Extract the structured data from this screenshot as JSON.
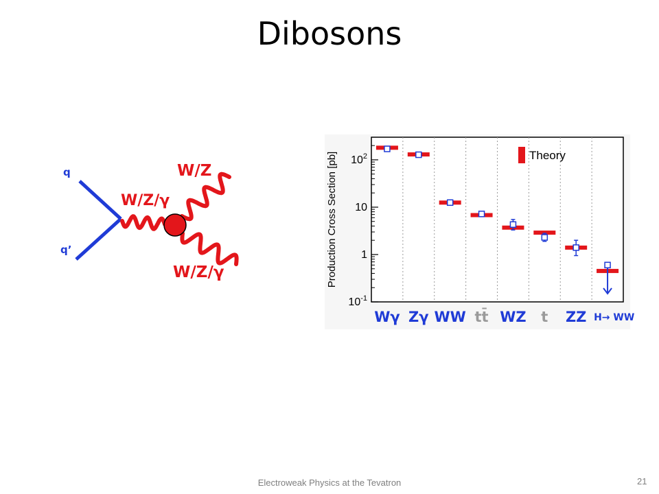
{
  "slide": {
    "title": "Dibosons",
    "footer": "Electroweak Physics at the Tevatron",
    "page_number": "21"
  },
  "feynman": {
    "quark_top": "q",
    "quark_bottom": "q’",
    "boson_internal": "W/Z/γ",
    "boson_out_top": "W/Z",
    "boson_out_bottom": "W/Z/γ",
    "line_color": "#1f3bd6",
    "boson_color": "#e3161b"
  },
  "chart_data": {
    "type": "scatter",
    "ylabel": "Production Cross Section [pb]",
    "yscale": "log",
    "ylim": [
      0.1,
      300
    ],
    "y_tick_labels": [
      "10^-1",
      "1",
      "10",
      "10^2"
    ],
    "legend": {
      "label": "Theory",
      "position": "top-right",
      "color": "#e3161b"
    },
    "categories": [
      "Wγ",
      "Zγ",
      "WW",
      "tt̄",
      "WZ",
      "t",
      "ZZ",
      "H→ WW"
    ],
    "category_colors": [
      "#1f3bd6",
      "#1f3bd6",
      "#1f3bd6",
      "#9a9a9a",
      "#1f3bd6",
      "#9a9a9a",
      "#1f3bd6",
      "#1f3bd6"
    ],
    "theory": [
      180,
      130,
      12.5,
      6.8,
      3.7,
      2.9,
      1.4,
      0.45
    ],
    "measured": [
      170,
      128,
      12.5,
      7.2,
      4.3,
      2.3,
      1.4,
      0.6
    ],
    "measured_low": [
      160,
      122,
      11.0,
      6.6,
      3.3,
      1.9,
      0.95,
      null
    ],
    "measured_high": [
      185,
      135,
      14.0,
      7.8,
      5.5,
      2.8,
      2.0,
      null
    ],
    "upper_limit": [
      false,
      false,
      false,
      false,
      false,
      false,
      false,
      true
    ],
    "grid": false
  }
}
